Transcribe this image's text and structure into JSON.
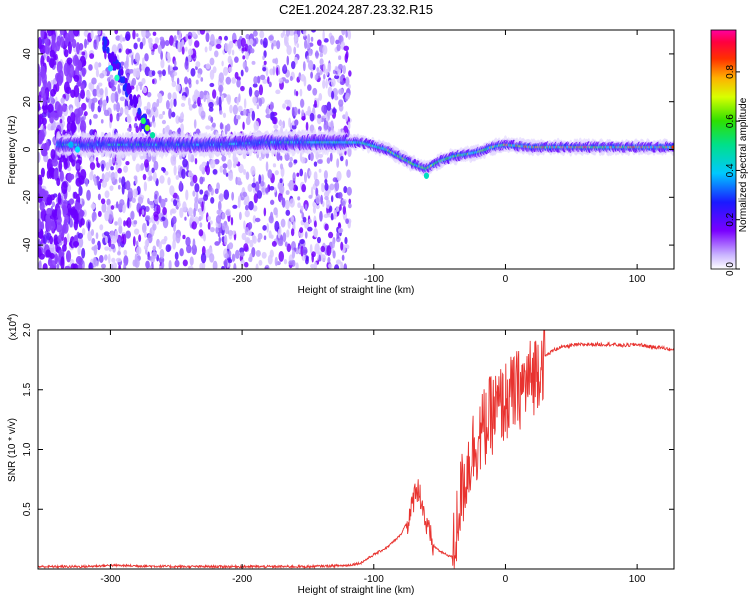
{
  "page_title": "C2E1.2024.287.23.32.R15",
  "chart_data": [
    {
      "type": "heatmap",
      "xlabel": "Height of straight line (km)",
      "ylabel": "Frequency (Hz)",
      "xlim": [
        -355,
        128
      ],
      "ylim": [
        -50,
        50
      ],
      "xticks": [
        -300,
        -200,
        -100,
        0,
        100
      ],
      "yticks": [
        -40,
        -20,
        0,
        20,
        40
      ],
      "ridge": {
        "x": [
          -330,
          -300,
          -260,
          -220,
          -180,
          -140,
          -110,
          -90,
          -80,
          -70,
          -60,
          -50,
          -40,
          -30,
          -20,
          -10,
          0,
          20,
          50,
          80,
          100,
          128
        ],
        "y": [
          2,
          2,
          2,
          2,
          3,
          3,
          3,
          0,
          -3,
          -6,
          -8,
          -5,
          -3,
          -2,
          -1,
          1,
          2,
          1,
          1,
          1,
          1,
          1
        ]
      },
      "colorbar": {
        "label": "Normalized spectral amplitude",
        "range": [
          0,
          0.97
        ],
        "ticks": [
          0,
          0.2,
          0.4,
          0.6,
          0.8
        ],
        "tick_labels": [
          "0.0",
          "0.2",
          "0.4",
          "0.6",
          "0.8"
        ],
        "colormap": "rainbow (purple → blue → cyan → green → yellow → orange → red → magenta)"
      }
    },
    {
      "type": "line",
      "xlabel": "Height of straight line (km)",
      "ylabel": "SNR (10 * v/v)",
      "y_multiplier": "(x10",
      "y_multiplier_exp": "4",
      "y_multiplier_close": ")",
      "xlim": [
        -355,
        128
      ],
      "ylim": [
        0,
        2.0
      ],
      "xticks": [
        -300,
        -200,
        -100,
        0,
        100
      ],
      "yticks": [
        0.5,
        1.0,
        1.5,
        2.0
      ],
      "ytick_labels": [
        "0.5",
        "1.0",
        "1.5",
        "2.0"
      ],
      "series": [
        {
          "color": "#e8332f",
          "x": [
            -355,
            -320,
            -300,
            -250,
            -200,
            -150,
            -120,
            -110,
            -100,
            -90,
            -80,
            -72,
            -68,
            -64,
            -60,
            -55,
            -50,
            -45,
            -40,
            -38,
            -35,
            -30,
            -25,
            -20,
            -15,
            -10,
            -5,
            0,
            5,
            10,
            15,
            20,
            25,
            30,
            35,
            40,
            50,
            60,
            70,
            80,
            90,
            100,
            110,
            120,
            128
          ],
          "y": [
            0.02,
            0.02,
            0.03,
            0.02,
            0.02,
            0.02,
            0.03,
            0.05,
            0.12,
            0.18,
            0.28,
            0.45,
            0.7,
            0.6,
            0.35,
            0.2,
            0.15,
            0.12,
            0.1,
            0.25,
            0.55,
            0.8,
            1.0,
            1.1,
            1.2,
            1.3,
            1.35,
            1.4,
            1.45,
            1.5,
            1.55,
            1.6,
            1.7,
            1.78,
            1.82,
            1.85,
            1.87,
            1.88,
            1.88,
            1.88,
            1.87,
            1.88,
            1.86,
            1.85,
            1.83
          ]
        }
      ]
    }
  ]
}
